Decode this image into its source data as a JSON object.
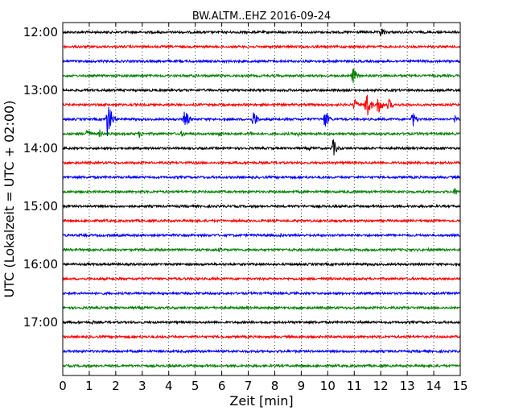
{
  "chart_data": {
    "type": "line",
    "title": "BW.ALTM..EHZ 2016-09-24",
    "xlabel": "Zeit  [min]",
    "ylabel": "UTC (Lokalzeit = UTC + 02:00)",
    "xlim": [
      0,
      15
    ],
    "x_ticks": [
      "0",
      "1",
      "2",
      "3",
      "4",
      "5",
      "6",
      "7",
      "8",
      "9",
      "10",
      "11",
      "12",
      "13",
      "14",
      "15"
    ],
    "y_ticks": [
      "12:00",
      "13:00",
      "14:00",
      "15:00",
      "16:00",
      "17:00"
    ],
    "grid": "vertical dotted lines at each minute",
    "trace_colors": [
      "#000000",
      "#ff0000",
      "#0000ff",
      "#008000"
    ],
    "traces": [
      {
        "start": "12:00",
        "color": "#000000",
        "events": [
          {
            "min": 12.0,
            "amp": 8
          }
        ]
      },
      {
        "start": "12:15",
        "color": "#ff0000",
        "events": []
      },
      {
        "start": "12:30",
        "color": "#0000ff",
        "events": []
      },
      {
        "start": "12:45",
        "color": "#008000",
        "events": [
          {
            "min": 10.95,
            "amp": 12
          }
        ]
      },
      {
        "start": "13:00",
        "color": "#000000",
        "events": []
      },
      {
        "start": "13:15",
        "color": "#ff0000",
        "events": [
          {
            "min": 11.0,
            "amp": 9
          },
          {
            "min": 11.45,
            "amp": 24
          },
          {
            "min": 11.9,
            "amp": 14
          },
          {
            "min": 12.3,
            "amp": 9
          }
        ]
      },
      {
        "start": "13:30",
        "color": "#0000ff",
        "events": [
          {
            "min": 1.7,
            "amp": 28
          },
          {
            "min": 4.6,
            "amp": 16
          },
          {
            "min": 7.2,
            "amp": 13
          },
          {
            "min": 9.9,
            "amp": 14
          },
          {
            "min": 13.2,
            "amp": 11
          },
          {
            "min": 14.8,
            "amp": 6
          }
        ]
      },
      {
        "start": "13:45",
        "color": "#008000",
        "events": [
          {
            "min": 0.9,
            "amp": 10
          },
          {
            "min": 1.4,
            "amp": 6
          },
          {
            "min": 2.9,
            "amp": 5
          },
          {
            "min": 4.5,
            "amp": 5
          },
          {
            "min": 5.9,
            "amp": 5
          },
          {
            "min": 7.1,
            "amp": 4
          },
          {
            "min": 8.9,
            "amp": 4
          }
        ]
      },
      {
        "start": "14:00",
        "color": "#000000",
        "events": [
          {
            "min": 10.2,
            "amp": 13
          },
          {
            "min": 9.3,
            "amp": 3
          }
        ]
      },
      {
        "start": "14:15",
        "color": "#ff0000",
        "events": []
      },
      {
        "start": "14:30",
        "color": "#0000ff",
        "events": []
      },
      {
        "start": "14:45",
        "color": "#008000",
        "events": [
          {
            "min": 14.8,
            "amp": 6
          }
        ]
      },
      {
        "start": "15:00",
        "color": "#000000",
        "events": []
      },
      {
        "start": "15:15",
        "color": "#ff0000",
        "events": []
      },
      {
        "start": "15:30",
        "color": "#0000ff",
        "events": [
          {
            "min": 8.2,
            "amp": 3
          }
        ]
      },
      {
        "start": "15:45",
        "color": "#008000",
        "events": [
          {
            "min": 5.9,
            "amp": 3
          },
          {
            "min": 13.8,
            "amp": 3
          }
        ]
      },
      {
        "start": "16:00",
        "color": "#000000",
        "events": []
      },
      {
        "start": "16:15",
        "color": "#ff0000",
        "events": []
      },
      {
        "start": "16:30",
        "color": "#0000ff",
        "events": []
      },
      {
        "start": "16:45",
        "color": "#008000",
        "events": []
      },
      {
        "start": "17:00",
        "color": "#000000",
        "events": [
          {
            "min": 1.1,
            "amp": 3
          }
        ]
      },
      {
        "start": "17:15",
        "color": "#ff0000",
        "events": []
      },
      {
        "start": "17:30",
        "color": "#0000ff",
        "events": []
      },
      {
        "start": "17:45",
        "color": "#008000",
        "events": []
      }
    ]
  }
}
